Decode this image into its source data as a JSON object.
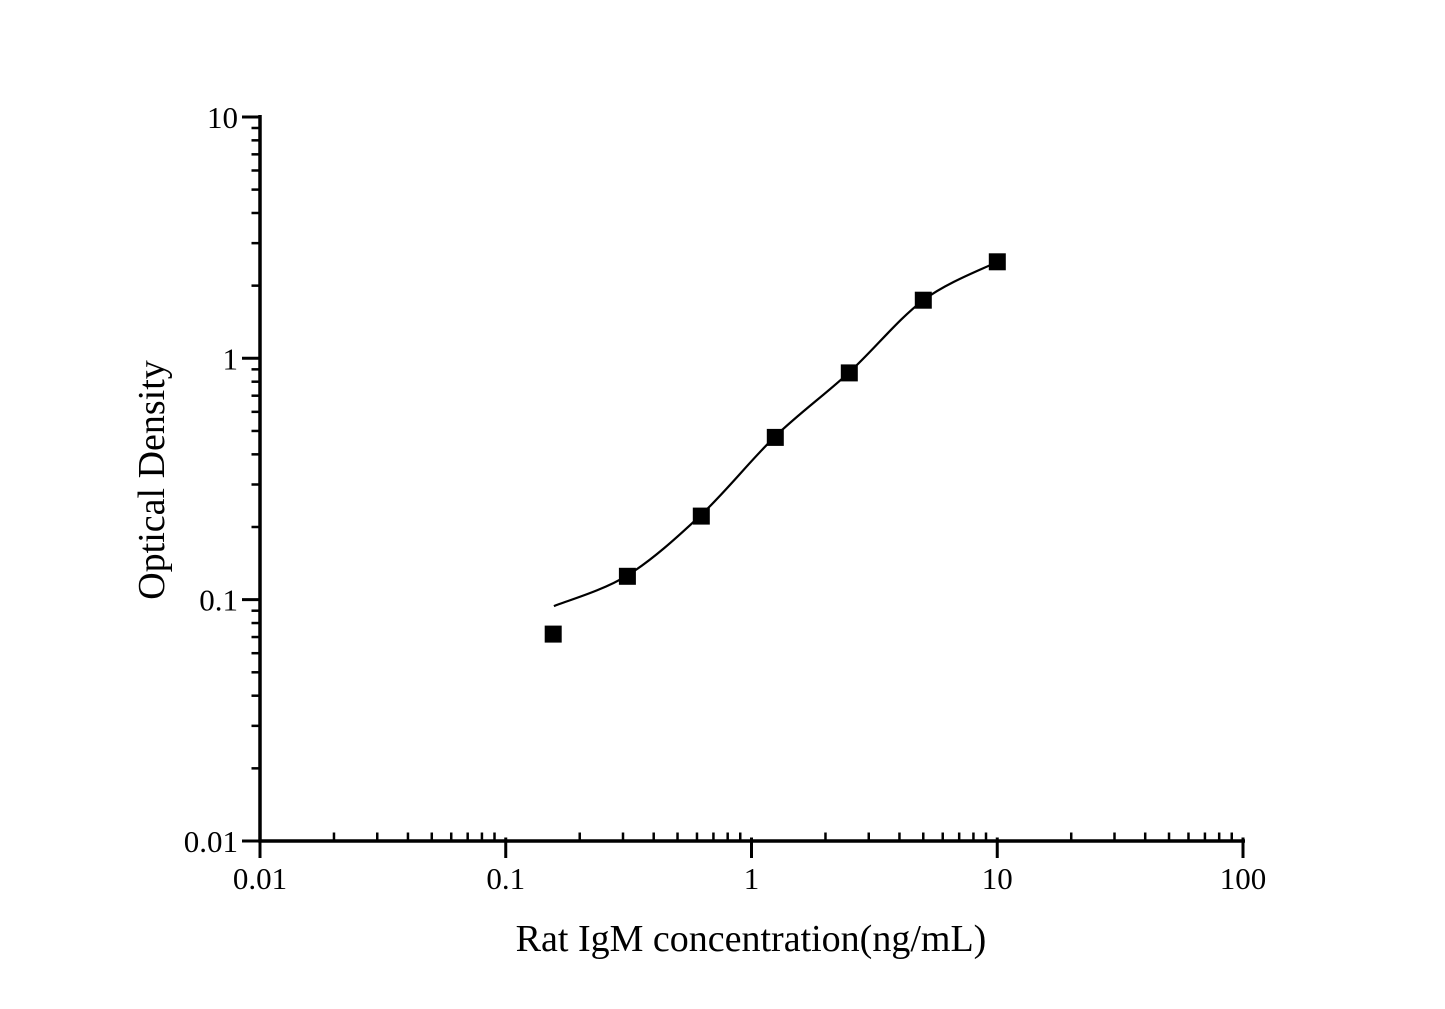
{
  "page": {
    "background": "#ffffff",
    "text_color": "#000000"
  },
  "chart_data": {
    "type": "scatter",
    "title": "",
    "xlabel": "Rat IgM concentration(ng/mL)",
    "ylabel": "Optical Density",
    "x_scale": "log",
    "y_scale": "log",
    "xlim": [
      0.01,
      100
    ],
    "ylim": [
      0.01,
      10
    ],
    "grid": false,
    "legend": false,
    "x_ticks": [
      {
        "value": 0.01,
        "label": "0.01"
      },
      {
        "value": 0.1,
        "label": "0.1"
      },
      {
        "value": 1,
        "label": "1"
      },
      {
        "value": 10,
        "label": "10"
      },
      {
        "value": 100,
        "label": "100"
      }
    ],
    "y_ticks": [
      {
        "value": 0.01,
        "label": "0.01"
      },
      {
        "value": 0.1,
        "label": "0.1"
      },
      {
        "value": 1,
        "label": "1"
      },
      {
        "value": 10,
        "label": "10"
      }
    ],
    "series": [
      {
        "name": "standard-points",
        "marker": "filled-square",
        "color": "#000000",
        "points": [
          {
            "x": 0.156,
            "y": 0.072
          },
          {
            "x": 0.3125,
            "y": 0.125
          },
          {
            "x": 0.625,
            "y": 0.222
          },
          {
            "x": 1.25,
            "y": 0.47
          },
          {
            "x": 2.5,
            "y": 0.87
          },
          {
            "x": 5,
            "y": 1.74
          },
          {
            "x": 10,
            "y": 2.51
          }
        ]
      }
    ],
    "fit_curve": {
      "name": "fit-line",
      "color": "#000000",
      "points": [
        {
          "x": 0.157,
          "y": 0.094
        },
        {
          "x": 0.3125,
          "y": 0.126
        },
        {
          "x": 0.625,
          "y": 0.225
        },
        {
          "x": 1.25,
          "y": 0.475
        },
        {
          "x": 2.5,
          "y": 0.875
        },
        {
          "x": 5,
          "y": 1.74
        },
        {
          "x": 10,
          "y": 2.51
        }
      ]
    }
  }
}
